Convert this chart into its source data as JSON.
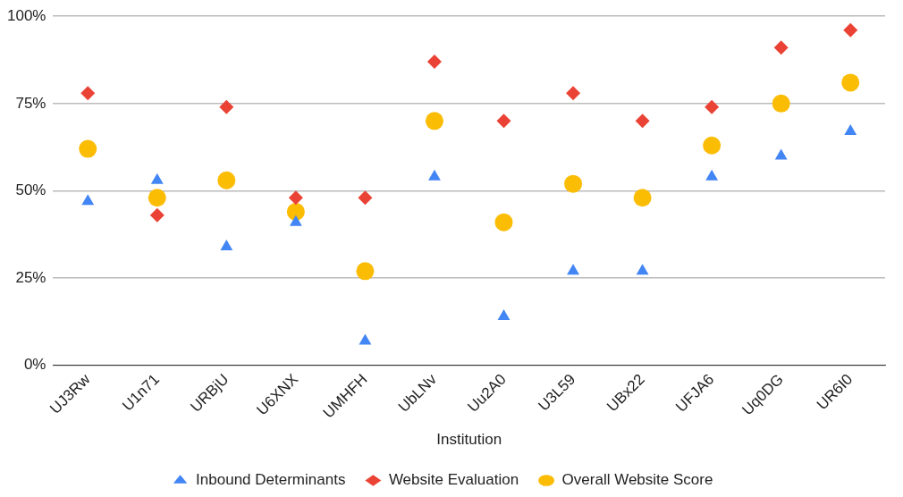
{
  "chart_data": {
    "type": "scatter",
    "xlabel": "Institution",
    "categories": [
      "UJ3Rw",
      "U1n71",
      "URBjU",
      "U6XNX",
      "UMHFH",
      "UbLNv",
      "Uu2A0",
      "U3L59",
      "UBx22",
      "UFJA6",
      "Uq0DG",
      "UR6I0"
    ],
    "series": [
      {
        "name": "Inbound Determinants",
        "color": "#4285f4",
        "marker": "triangle",
        "values": [
          47,
          53,
          34,
          41,
          7,
          54,
          14,
          27,
          27,
          54,
          60,
          67
        ]
      },
      {
        "name": "Website Evaluation",
        "color": "#ea4335",
        "marker": "diamond",
        "values": [
          78,
          43,
          74,
          48,
          48,
          87,
          70,
          78,
          70,
          74,
          91,
          96
        ]
      },
      {
        "name": "Overall Website Score",
        "color": "#fbbc04",
        "marker": "circle",
        "values": [
          62,
          48,
          53,
          44,
          27,
          70,
          41,
          52,
          48,
          63,
          75,
          81
        ]
      }
    ],
    "ylim": [
      0,
      100
    ],
    "yticks": [
      {
        "value": 0,
        "label": "0%"
      },
      {
        "value": 25,
        "label": "25%"
      },
      {
        "value": 50,
        "label": "50%"
      },
      {
        "value": 75,
        "label": "75%"
      },
      {
        "value": 100,
        "label": "100%"
      }
    ],
    "grid": "y",
    "legend": "bottom"
  }
}
